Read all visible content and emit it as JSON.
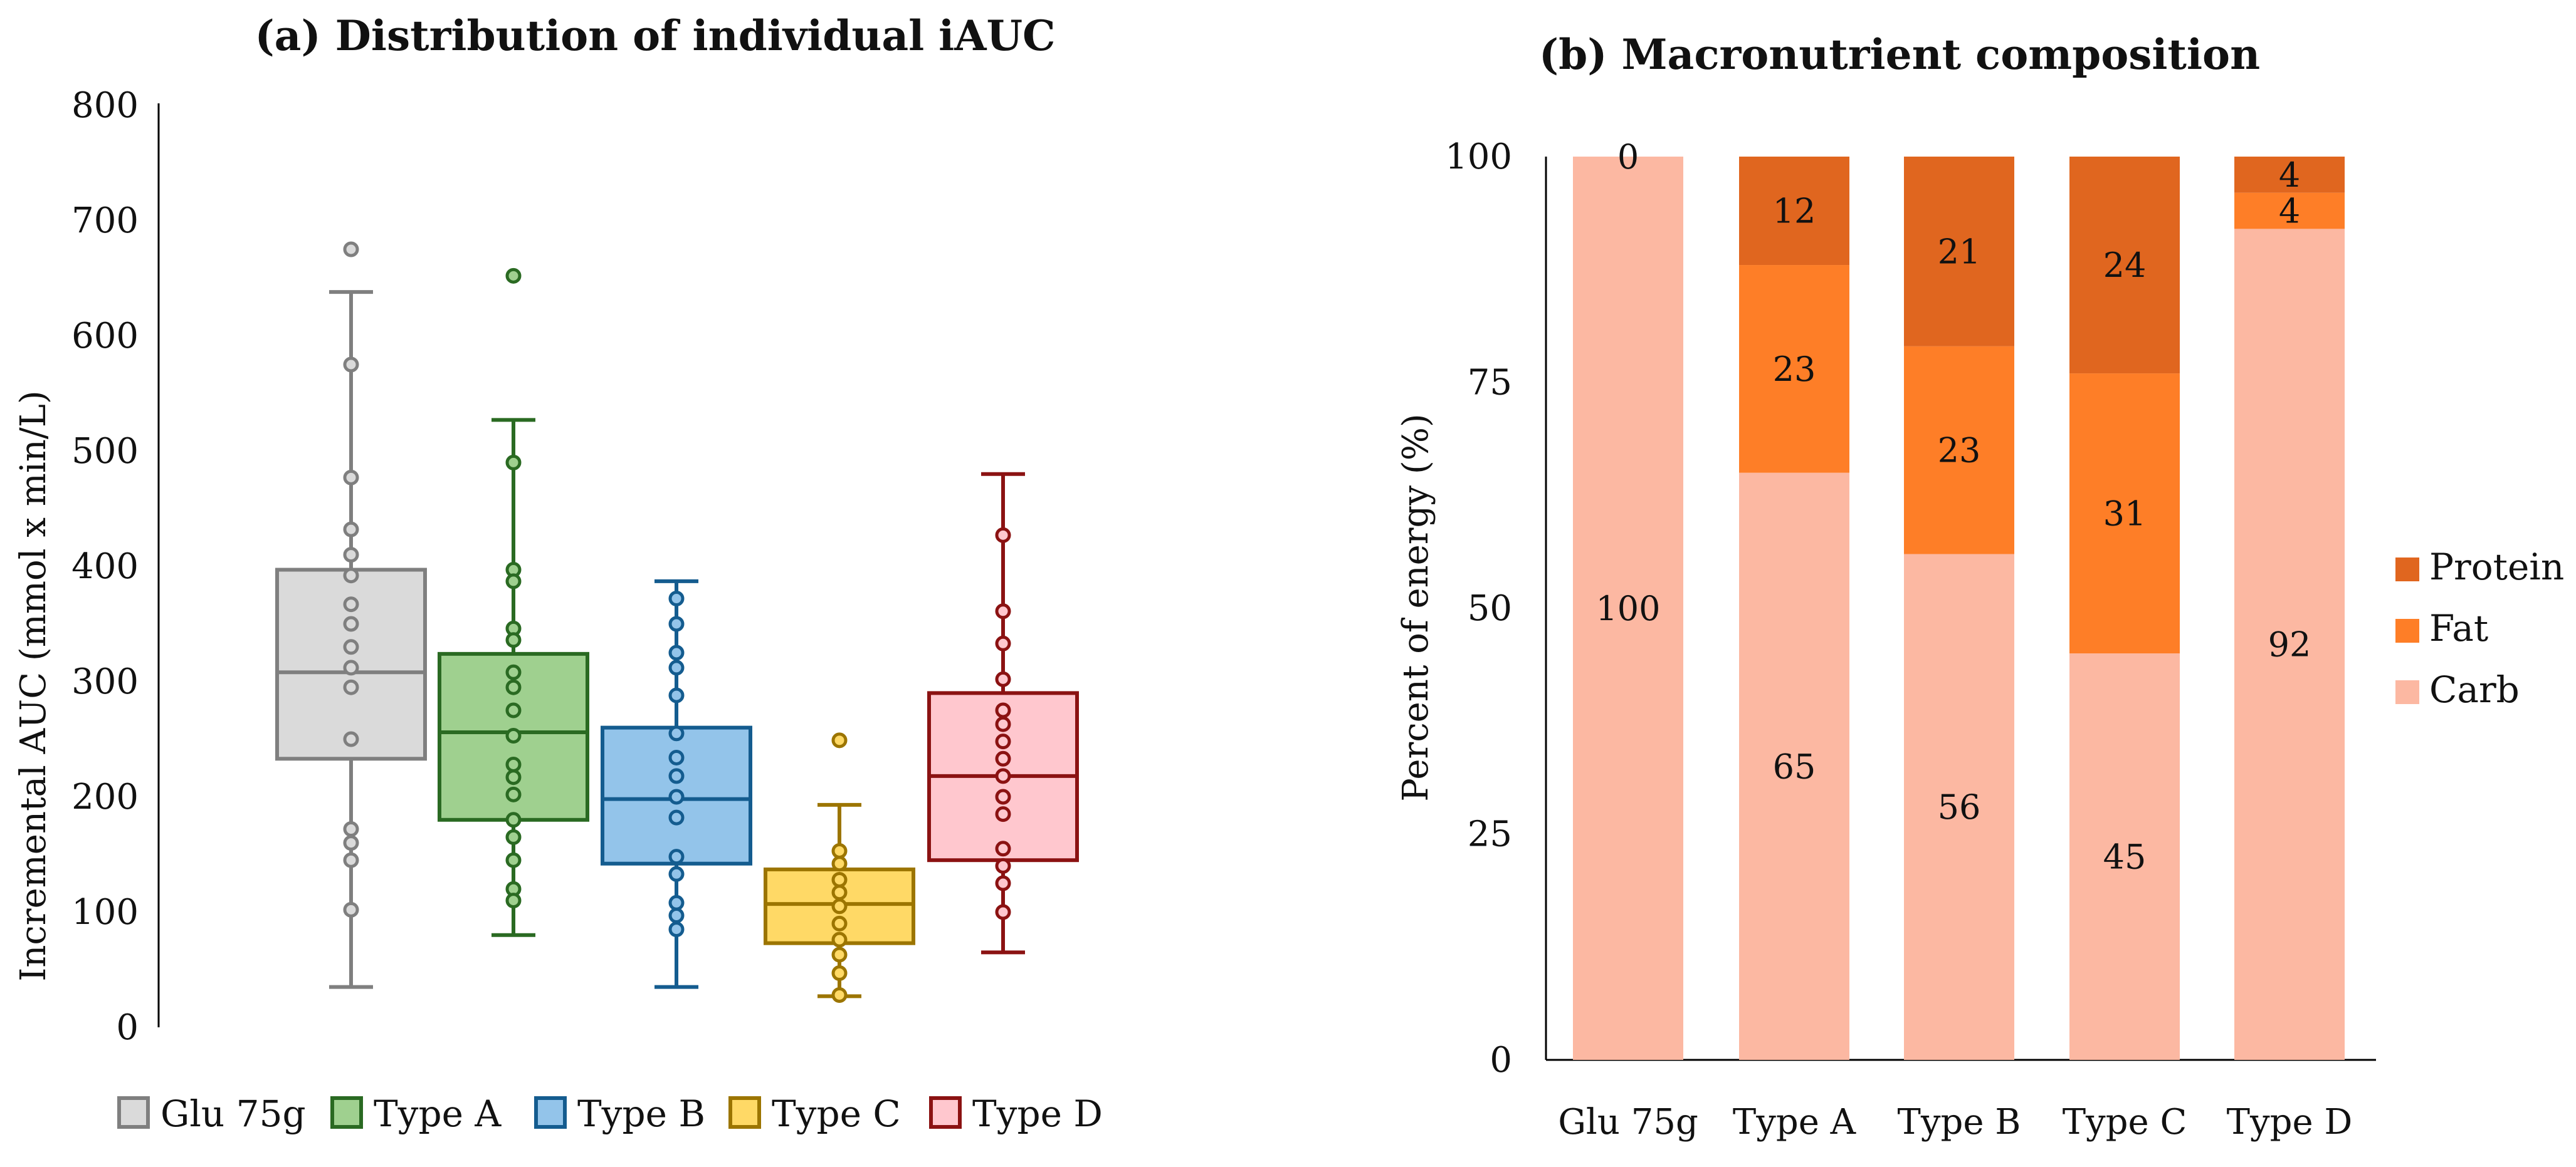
{
  "colors": {
    "glu": {
      "fill": "#dadada",
      "stroke": "#7f7f7f"
    },
    "a": {
      "fill": "#9fd08f",
      "stroke": "#2a6a22"
    },
    "b": {
      "fill": "#93c4ea",
      "stroke": "#145c8f"
    },
    "c": {
      "fill": "#ffd966",
      "stroke": "#9c7500"
    },
    "d": {
      "fill": "#ffc7ce",
      "stroke": "#8b1212"
    },
    "protein": "#e0661f",
    "fat": "#fe7e27",
    "carb": "#fcb8a2"
  },
  "chart_data": [
    {
      "type": "box",
      "title": "(a) Distribution of individual iAUC",
      "xlabel": "",
      "ylabel": "Incremental AUC (mmol x min/L)",
      "ylim": [
        0,
        800
      ],
      "yticks": [
        "0",
        "100",
        "200",
        "300",
        "400",
        "500",
        "600",
        "700",
        "800"
      ],
      "series": [
        {
          "key": "glu",
          "name": "Glu 75g",
          "min": 35,
          "q1": 233,
          "median": 308,
          "q3": 397,
          "max": 638,
          "points": [
            675,
            575,
            477,
            432,
            410,
            392,
            367,
            350,
            330,
            312,
            295,
            250,
            172,
            160,
            145,
            102
          ]
        },
        {
          "key": "a",
          "name": "Type A",
          "min": 80,
          "q1": 180,
          "median": 256,
          "q3": 324,
          "max": 527,
          "points": [
            652,
            490,
            397,
            387,
            346,
            336,
            308,
            295,
            275,
            253,
            228,
            217,
            202,
            180,
            165,
            145,
            120,
            110
          ]
        },
        {
          "key": "b",
          "name": "Type B",
          "min": 35,
          "q1": 142,
          "median": 198,
          "q3": 260,
          "max": 387,
          "points": [
            372,
            350,
            325,
            312,
            288,
            255,
            234,
            218,
            200,
            182,
            148,
            133,
            108,
            97,
            85
          ]
        },
        {
          "key": "c",
          "name": "Type C",
          "min": 27,
          "q1": 73,
          "median": 107,
          "q3": 137,
          "max": 193,
          "points": [
            249,
            153,
            142,
            128,
            117,
            105,
            90,
            76,
            63,
            47,
            28
          ]
        },
        {
          "key": "d",
          "name": "Type D",
          "min": 65,
          "q1": 145,
          "median": 218,
          "q3": 290,
          "max": 480,
          "points": [
            427,
            361,
            333,
            302,
            275,
            263,
            248,
            233,
            218,
            200,
            185,
            155,
            140,
            125,
            100
          ]
        }
      ]
    },
    {
      "type": "stacked_bar",
      "title": "(b) Macronutrient composition",
      "xlabel": "",
      "ylabel": "Percent of energy (%)",
      "ylim": [
        0,
        100
      ],
      "yticks": [
        "0",
        "25",
        "50",
        "75",
        "100"
      ],
      "categories": [
        "Glu 75g",
        "Type A",
        "Type B",
        "Type C",
        "Type D"
      ],
      "series": [
        {
          "key": "carb",
          "name": "Carb",
          "values": [
            100,
            65,
            56,
            45,
            92
          ],
          "labels": [
            "100",
            "65",
            "56",
            "45",
            "92"
          ]
        },
        {
          "key": "fat",
          "name": "Fat",
          "values": [
            0,
            23,
            23,
            31,
            4
          ],
          "labels": [
            "",
            "23",
            "23",
            "31",
            "4"
          ]
        },
        {
          "key": "protein",
          "name": "Protein",
          "values": [
            0,
            12,
            21,
            24,
            4
          ],
          "labels": [
            "0",
            "12",
            "21",
            "24",
            "4"
          ]
        }
      ],
      "legend_order": [
        "Protein",
        "Fat",
        "Carb"
      ]
    }
  ]
}
